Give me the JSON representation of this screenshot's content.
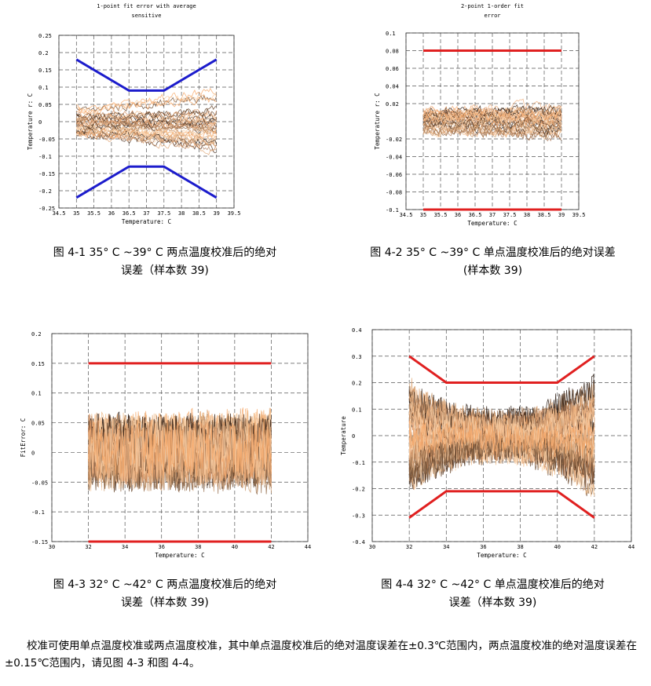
{
  "figures": [
    {
      "caption_line1": "图 4-1 35° C ~39° C 两点温度校准后的绝对",
      "caption_line2": "误差（样本数 39)"
    },
    {
      "caption_line1": "图 4-2 35° C ~39° C 单点温度校准后的绝对误差",
      "caption_line2": "(样本数 39)"
    },
    {
      "caption_line1": "图 4-3 32° C ~42° C 两点温度校准后的绝对",
      "caption_line2": "误差（样本数 39)"
    },
    {
      "caption_line1": "图 4-4 32° C ~42° C 单点温度校准后的绝对",
      "caption_line2": "误差（样本数 39)"
    }
  ],
  "paragraph": "校准可使用单点温度校准或两点温度校准，其中单点温度校准后的绝对温度误差在±0.3℃范围内，两点温度校准的绝对温度误差在±0.15℃范围内，请见图 4-3 和图 4-4。",
  "chart_data": [
    {
      "type": "line",
      "title": "1-point fit error with average sensitive",
      "xlabel": "Temperature: C",
      "ylabel": "Temperature  r:  C",
      "xlim": [
        34.5,
        39.5
      ],
      "ylim": [
        -0.25,
        0.25
      ],
      "x_ticks": [
        "34.5",
        "35",
        "35.5",
        "36",
        "36.5",
        "37",
        "37.5",
        "38",
        "38.5",
        "39",
        "39.5"
      ],
      "y_ticks": [
        "0.25",
        "0.2",
        "0.15",
        "0.1",
        "0.05",
        "0",
        "-0.05",
        "-0.1",
        "-0.15",
        "-0.2",
        "-0.25"
      ],
      "grid": true,
      "bound_color": "#1c1ccc",
      "bounds": [
        {
          "x": [
            35,
            36.5,
            37.5,
            39
          ],
          "y": [
            0.18,
            0.09,
            0.09,
            0.18
          ]
        },
        {
          "x": [
            35,
            36.5,
            37.5,
            39
          ],
          "y": [
            -0.22,
            -0.13,
            -0.13,
            -0.22
          ]
        }
      ],
      "noise": {
        "x_start": 35,
        "x_end": 39,
        "spread": 0.045,
        "amp": 0.035
      },
      "sample_count": 39
    },
    {
      "type": "line",
      "title": "2-point 1-order fit error",
      "xlabel": "Temperature: C",
      "ylabel": "Temperature  r:  C",
      "xlim": [
        34.5,
        39.5
      ],
      "ylim": [
        -0.1,
        0.1
      ],
      "x_ticks": [
        "34.5",
        "35",
        "35.5",
        "36",
        "36.5",
        "37",
        "37.5",
        "38",
        "38.5",
        "39",
        "39.5"
      ],
      "y_ticks": [
        "0.1",
        "0.08",
        "0.06",
        "0.04",
        "0.02",
        "-0.02",
        "-0.04",
        "-0.06",
        "-0.08",
        "-0.1"
      ],
      "grid": true,
      "bound_color": "#e02020",
      "bounds": [
        {
          "x": [
            35,
            39
          ],
          "y": [
            0.08,
            0.08
          ]
        },
        {
          "x": [
            35,
            39
          ],
          "y": [
            -0.1,
            -0.1
          ]
        }
      ],
      "noise": {
        "x_start": 35,
        "x_end": 39,
        "spread": 0.012,
        "amp": 0.018
      },
      "sample_count": 39
    },
    {
      "type": "line",
      "title": "",
      "xlabel": "Temperature: C",
      "ylabel": "FitError: C",
      "xlim": [
        30,
        44
      ],
      "ylim": [
        -0.15,
        0.2
      ],
      "x_ticks": [
        "30",
        "32",
        "34",
        "36",
        "38",
        "40",
        "42",
        "44"
      ],
      "y_ticks": [
        "0.2",
        "0.15",
        "0.1",
        "0.05",
        "0",
        "-0.05",
        "-0.1",
        "-0.15"
      ],
      "grid": true,
      "bound_color": "#e02020",
      "bounds": [
        {
          "x": [
            32,
            42
          ],
          "y": [
            0.15,
            0.15
          ]
        },
        {
          "x": [
            32,
            42
          ],
          "y": [
            -0.15,
            -0.15
          ]
        }
      ],
      "noise": {
        "x_start": 32,
        "x_end": 42,
        "spread": 0.02,
        "amp": 0.05
      },
      "sample_count": 39
    },
    {
      "type": "line",
      "title": "",
      "xlabel": "Temperature: C",
      "ylabel": "Temperature",
      "xlim": [
        30,
        44
      ],
      "ylim": [
        -0.4,
        0.4
      ],
      "x_ticks": [
        "30",
        "32",
        "34",
        "36",
        "38",
        "40",
        "42",
        "44"
      ],
      "y_ticks": [
        "0.4",
        "0.3",
        "0.2",
        "0.1",
        "0",
        "-0.1",
        "-0.2",
        "-0.3",
        "-0.4"
      ],
      "grid": true,
      "bound_color": "#e02020",
      "bounds": [
        {
          "x": [
            32,
            34,
            40,
            42
          ],
          "y": [
            0.3,
            0.2,
            0.2,
            0.3
          ]
        },
        {
          "x": [
            32,
            34,
            40,
            42
          ],
          "y": [
            -0.31,
            -0.21,
            -0.21,
            -0.31
          ]
        }
      ],
      "noise": {
        "x_start": 32,
        "x_end": 42,
        "spread": 0.08,
        "amp": 0.06
      },
      "sample_count": 39
    }
  ]
}
